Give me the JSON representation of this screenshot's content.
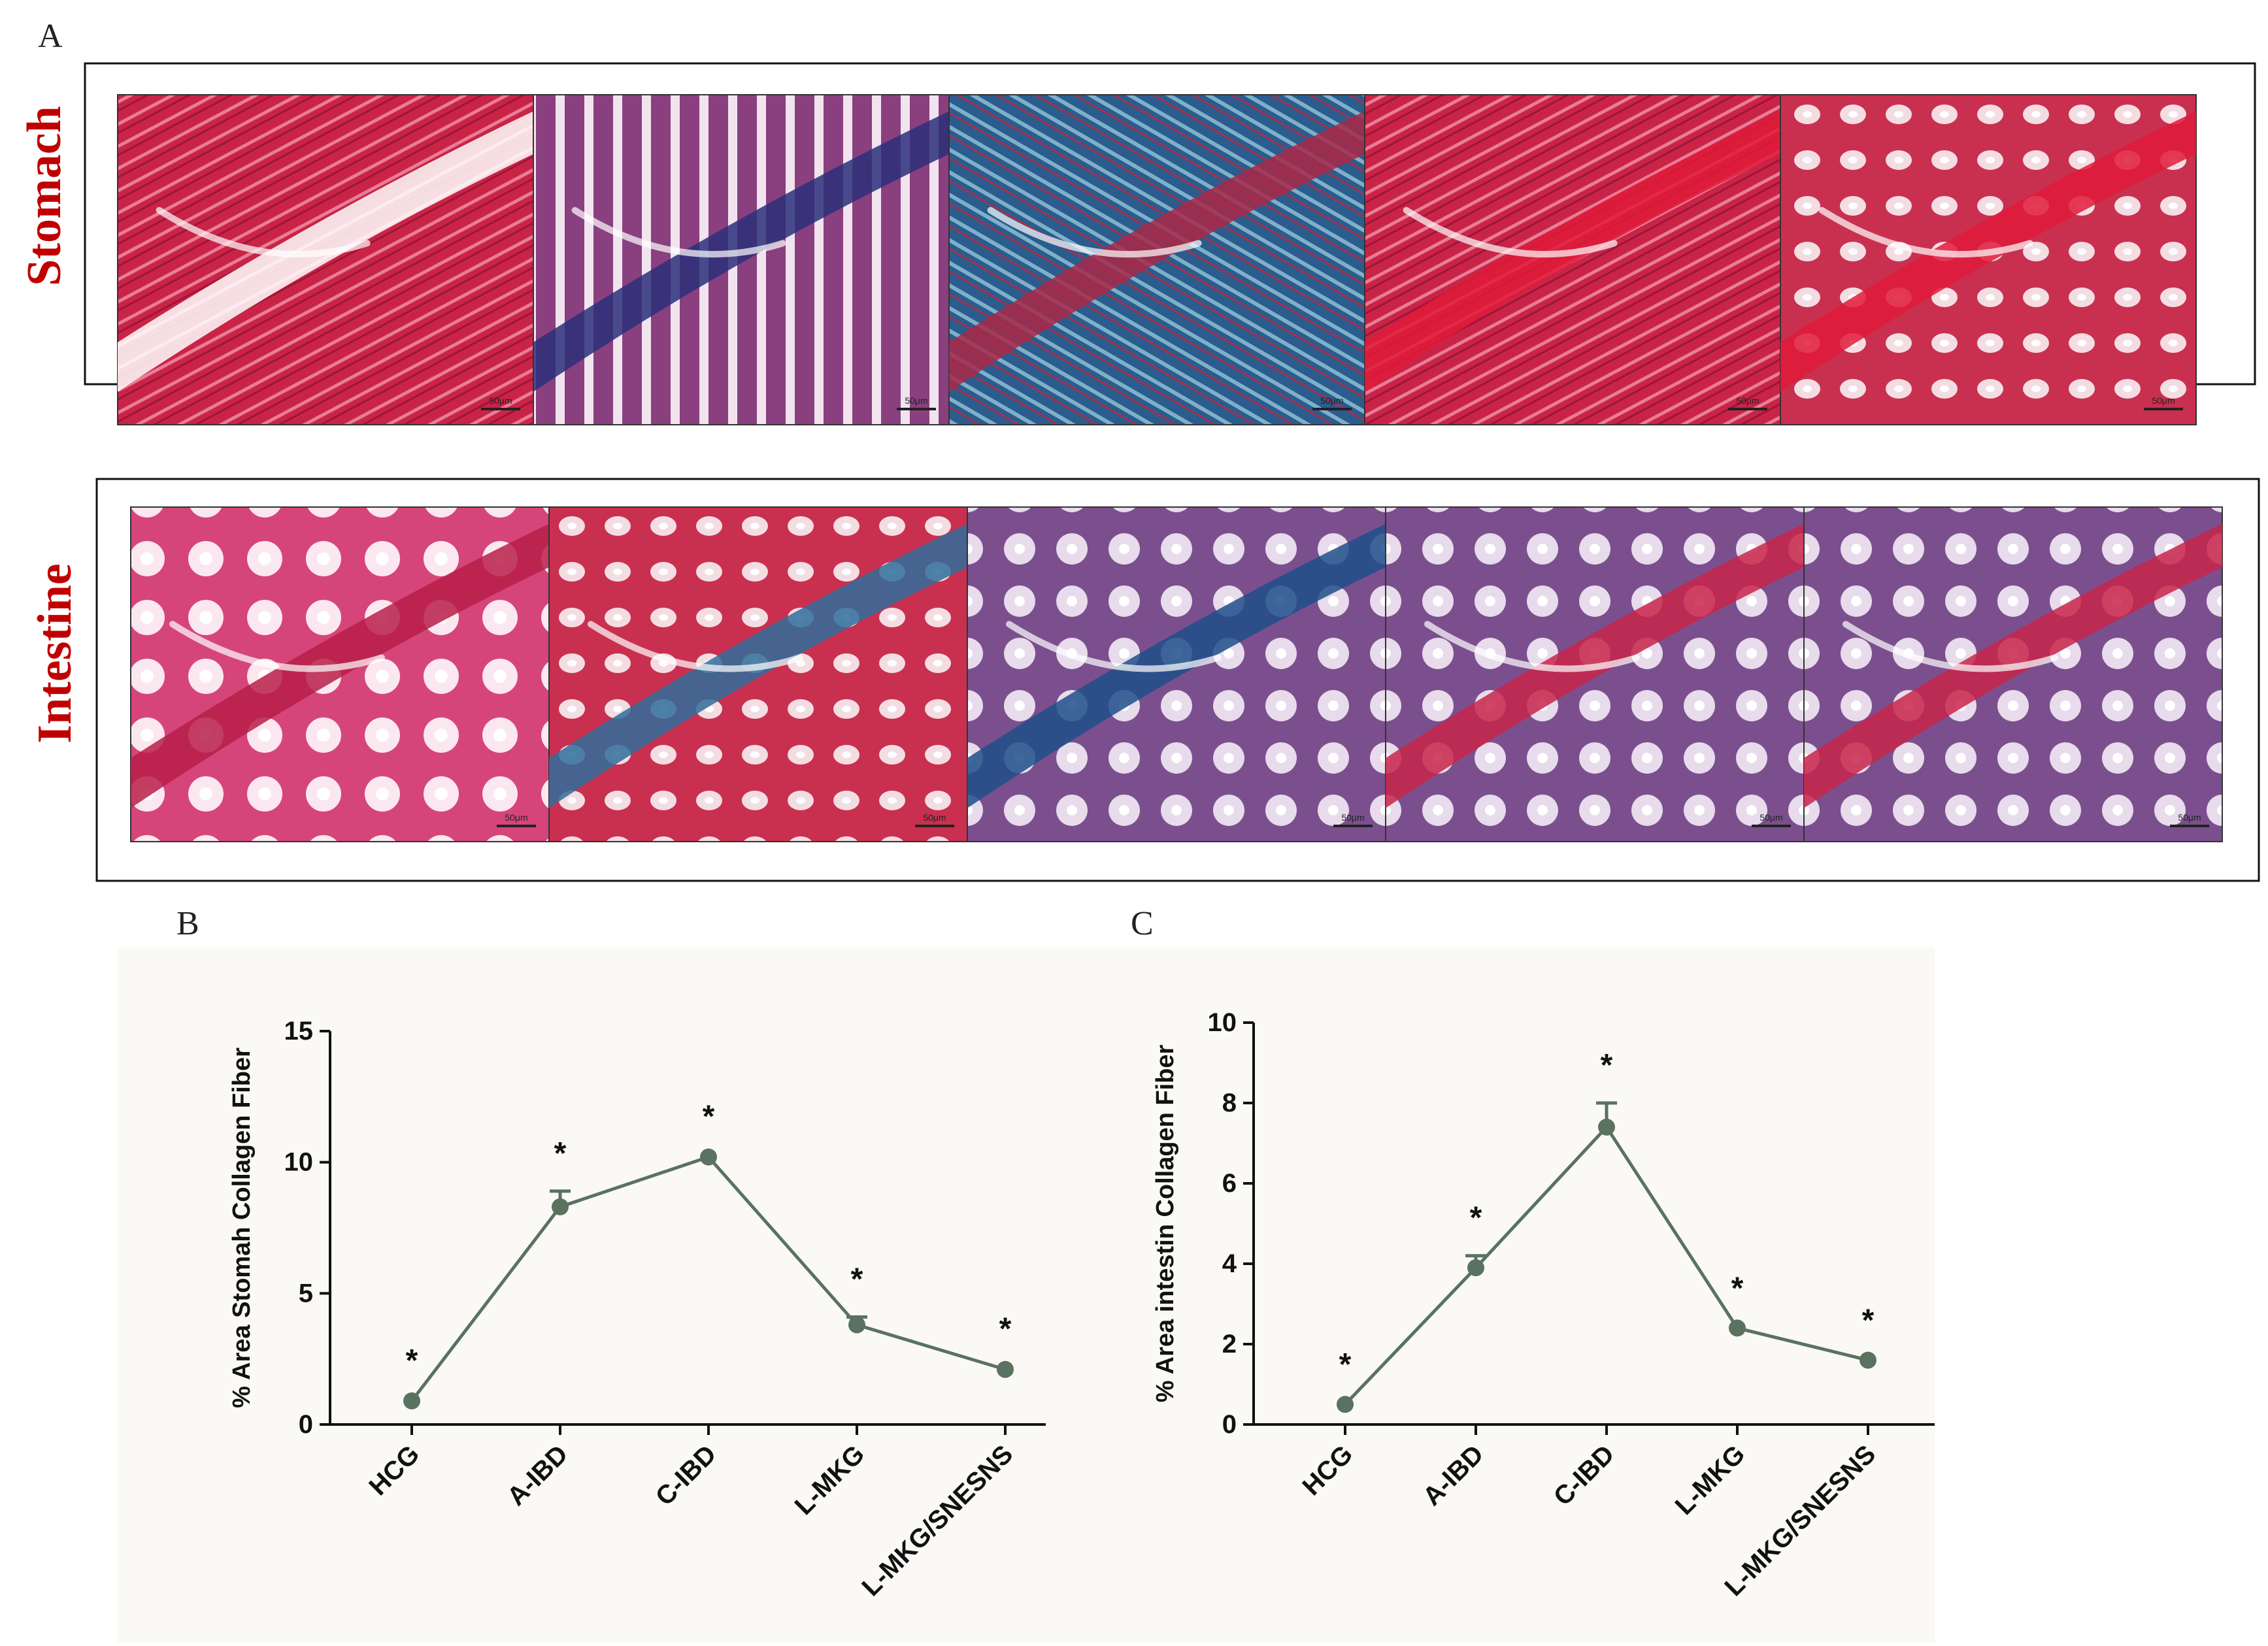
{
  "panel_a": {
    "letter": "A",
    "rows": [
      {
        "label": "Stomach",
        "images": [
          {
            "kind": "stomach-red",
            "scale": "50μm"
          },
          {
            "kind": "stomach-purple",
            "scale": "50μm"
          },
          {
            "kind": "stomach-blue",
            "scale": "50μm"
          },
          {
            "kind": "stomach-red2",
            "scale": "50μm"
          },
          {
            "kind": "stomach-red3",
            "scale": "50μm"
          }
        ]
      },
      {
        "label": "Intestine",
        "images": [
          {
            "kind": "intestine-pink",
            "scale": "50μm"
          },
          {
            "kind": "intestine-mixed",
            "scale": "50μm"
          },
          {
            "kind": "intestine-blue",
            "scale": "50μm"
          },
          {
            "kind": "intestine-purple",
            "scale": "50μm"
          },
          {
            "kind": "intestine-purple2",
            "scale": "50μm"
          }
        ]
      }
    ]
  },
  "colors": {
    "line": "#5a7260",
    "label_red": "#c00000",
    "collagen_blue": "#1f4f8a",
    "tissue_red": "#c8244a"
  },
  "chart_data": [
    {
      "panel": "B",
      "type": "line",
      "categories": [
        "HCG",
        "A-IBD",
        "C-IBD",
        "L-MKG",
        "L-MKG/SNESNS"
      ],
      "values": [
        0.9,
        8.3,
        10.2,
        3.8,
        2.1
      ],
      "error": [
        0.1,
        0.6,
        0.1,
        0.3,
        0.1
      ],
      "annotations": [
        "*",
        "*",
        "*",
        "*",
        "*"
      ],
      "ylabel": "% Area Stomah Collagen Fiber",
      "ylim": [
        0,
        15
      ],
      "yticks": [
        0,
        5,
        10,
        15
      ]
    },
    {
      "panel": "C",
      "type": "line",
      "categories": [
        "HCG",
        "A-IBD",
        "C-IBD",
        "L-MKG",
        "L-MKG/SNESNS"
      ],
      "values": [
        0.5,
        3.9,
        7.4,
        2.4,
        1.6
      ],
      "error": [
        0.05,
        0.3,
        0.6,
        0.05,
        0.05
      ],
      "annotations": [
        "*",
        "*",
        "*",
        "*",
        "*"
      ],
      "ylabel": "% Area intestin Collagen Fiber",
      "ylim": [
        0,
        10
      ],
      "yticks": [
        0,
        2,
        4,
        6,
        8,
        10
      ]
    }
  ]
}
